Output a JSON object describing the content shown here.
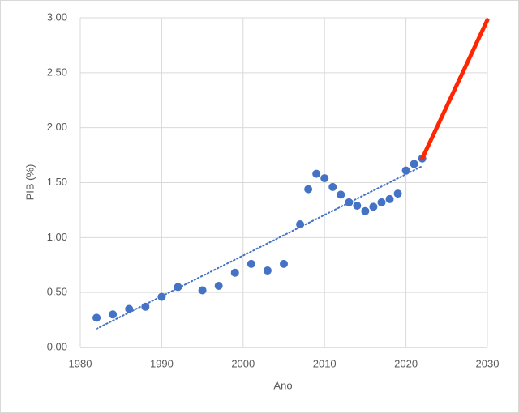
{
  "chart_data": {
    "type": "scatter",
    "x_label": "Ano",
    "y_label": "PIB (%)",
    "x": [
      1982,
      1984,
      1986,
      1988,
      1990,
      1992,
      1995,
      1997,
      1999,
      2001,
      2003,
      2005,
      2007,
      2008,
      2009,
      2010,
      2011,
      2012,
      2013,
      2014,
      2015,
      2016,
      2017,
      2018,
      2019,
      2020,
      2021,
      2022
    ],
    "values": [
      0.27,
      0.3,
      0.35,
      0.37,
      0.46,
      0.55,
      0.52,
      0.56,
      0.68,
      0.76,
      0.7,
      0.76,
      1.12,
      1.44,
      1.58,
      1.54,
      1.46,
      1.39,
      1.32,
      1.29,
      1.24,
      1.28,
      1.32,
      1.35,
      1.4,
      1.61,
      1.67,
      1.72
    ],
    "color": "#4472c4",
    "trendline": {
      "x": [
        1982,
        2022
      ],
      "values": [
        0.17,
        1.65
      ],
      "color": "#4472c4"
    },
    "projection": {
      "x": [
        2022,
        2030
      ],
      "values": [
        1.72,
        2.98
      ],
      "color": "#ff2600"
    },
    "xlim": [
      1980,
      2030
    ],
    "xticks": [
      1980,
      1990,
      2000,
      2010,
      2020,
      2030
    ],
    "ylim": [
      0,
      3
    ],
    "yticks": [
      {
        "value": 0,
        "label": "0.00"
      },
      {
        "value": 0.5,
        "label": "0.50"
      },
      {
        "value": 1,
        "label": "1.00"
      },
      {
        "value": 1.5,
        "label": "1.50"
      },
      {
        "value": 2,
        "label": "2.00"
      },
      {
        "value": 2.5,
        "label": "2.50"
      },
      {
        "value": 3,
        "label": "3.00"
      }
    ],
    "grid": true
  }
}
